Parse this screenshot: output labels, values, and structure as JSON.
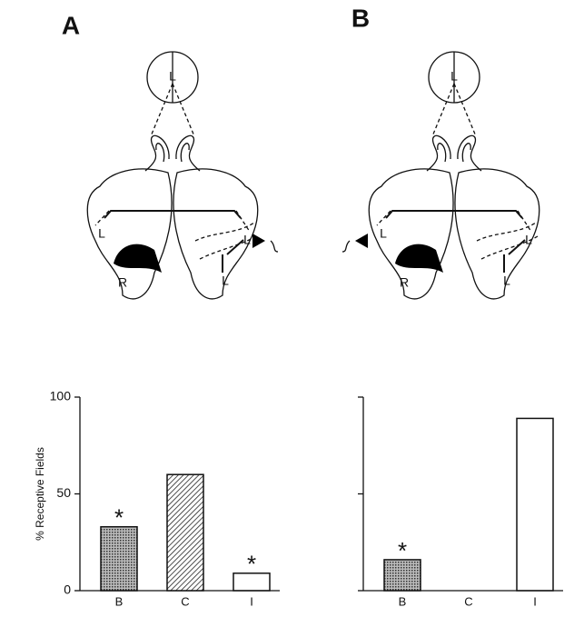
{
  "panels": [
    "A",
    "B"
  ],
  "diagrams": [
    {
      "labels": [
        "L",
        "L",
        "R",
        "L",
        "L"
      ]
    },
    {
      "labels": [
        "L",
        "L",
        "R",
        "L",
        "L"
      ]
    }
  ],
  "chart_data": [
    {
      "type": "bar",
      "ylabel": "% Receptive Fields",
      "categories": [
        "B",
        "C",
        "I"
      ],
      "values": [
        33,
        60,
        9
      ],
      "fills": [
        "stipple",
        "hatch",
        "white"
      ],
      "annotations": [
        "*",
        null,
        "*"
      ],
      "ylim": [
        0,
        100
      ],
      "yticks": [
        0,
        50,
        100
      ],
      "tick_labels": true
    },
    {
      "type": "bar",
      "categories": [
        "B",
        "C",
        "I"
      ],
      "values": [
        16,
        0,
        89
      ],
      "fills": [
        "stipple",
        "hatch",
        "white"
      ],
      "annotations": [
        "*",
        null,
        null
      ],
      "ylim": [
        0,
        100
      ],
      "yticks": [
        0,
        50,
        100
      ],
      "tick_labels": false
    }
  ]
}
